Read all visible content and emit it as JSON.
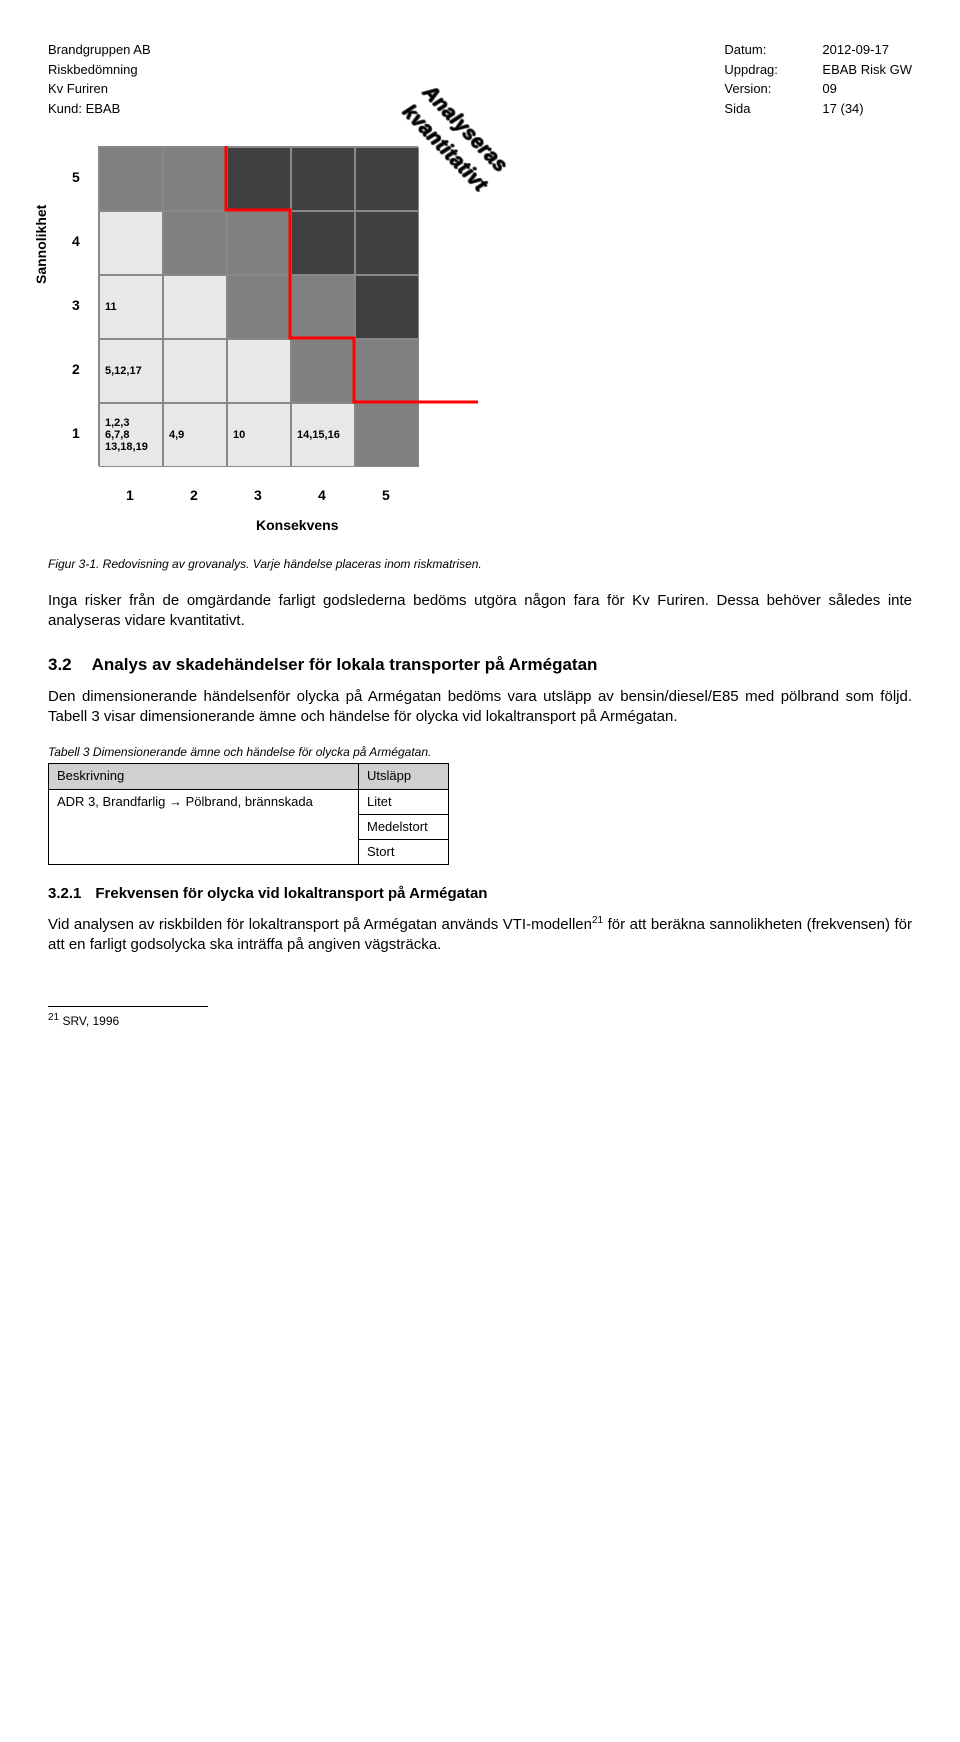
{
  "header": {
    "left": [
      "Brandgruppen AB",
      "Riskbedömning",
      "Kv Furiren",
      "Kund: EBAB"
    ],
    "right": [
      {
        "label": "Datum:",
        "value": "2012-09-17"
      },
      {
        "label": "Uppdrag:",
        "value": "EBAB Risk GW"
      },
      {
        "label": "Version:",
        "value": "09"
      },
      {
        "label": "Sida",
        "value": "17 (34)"
      }
    ]
  },
  "matrix": {
    "ylabel": "Sannolikhet",
    "xlabel": "Konsekvens",
    "diag": "Analyseras kvantitativt",
    "yticks": [
      "5",
      "4",
      "3",
      "2",
      "1"
    ],
    "xticks": [
      "1",
      "2",
      "3",
      "4",
      "5"
    ],
    "colors": {
      "light": "#e8e8e8",
      "med": "#808080",
      "dark": "#404040"
    },
    "red": "#ff0000",
    "cells": [
      {
        "r": 0,
        "c": 0,
        "shade": "med",
        "t": ""
      },
      {
        "r": 0,
        "c": 1,
        "shade": "med",
        "t": ""
      },
      {
        "r": 0,
        "c": 2,
        "shade": "dark",
        "t": ""
      },
      {
        "r": 0,
        "c": 3,
        "shade": "dark",
        "t": ""
      },
      {
        "r": 0,
        "c": 4,
        "shade": "dark",
        "t": ""
      },
      {
        "r": 1,
        "c": 0,
        "shade": "light",
        "t": ""
      },
      {
        "r": 1,
        "c": 1,
        "shade": "med",
        "t": ""
      },
      {
        "r": 1,
        "c": 2,
        "shade": "med",
        "t": ""
      },
      {
        "r": 1,
        "c": 3,
        "shade": "dark",
        "t": ""
      },
      {
        "r": 1,
        "c": 4,
        "shade": "dark",
        "t": ""
      },
      {
        "r": 2,
        "c": 0,
        "shade": "light",
        "t": "11"
      },
      {
        "r": 2,
        "c": 1,
        "shade": "light",
        "t": ""
      },
      {
        "r": 2,
        "c": 2,
        "shade": "med",
        "t": ""
      },
      {
        "r": 2,
        "c": 3,
        "shade": "med",
        "t": ""
      },
      {
        "r": 2,
        "c": 4,
        "shade": "dark",
        "t": ""
      },
      {
        "r": 3,
        "c": 0,
        "shade": "light",
        "t": "5,12,17"
      },
      {
        "r": 3,
        "c": 1,
        "shade": "light",
        "t": ""
      },
      {
        "r": 3,
        "c": 2,
        "shade": "light",
        "t": ""
      },
      {
        "r": 3,
        "c": 3,
        "shade": "med",
        "t": ""
      },
      {
        "r": 3,
        "c": 4,
        "shade": "med",
        "t": ""
      },
      {
        "r": 4,
        "c": 0,
        "shade": "light",
        "t": "1,2,3\n6,7,8\n13,18,19"
      },
      {
        "r": 4,
        "c": 1,
        "shade": "light",
        "t": "4,9"
      },
      {
        "r": 4,
        "c": 2,
        "shade": "light",
        "t": "10"
      },
      {
        "r": 4,
        "c": 3,
        "shade": "light",
        "t": "14,15,16"
      },
      {
        "r": 4,
        "c": 4,
        "shade": "med",
        "t": ""
      }
    ]
  },
  "fig_caption": "Figur 3-1. Redovisning av grovanalys. Varje händelse placeras inom riskmatrisen.",
  "para1": "Inga risker från de omgärdande farligt godslederna bedöms utgöra någon fara för Kv Furiren. Dessa behöver således inte analyseras vidare kvantitativt.",
  "sec": {
    "num": "3.2",
    "title": "Analys av skadehändelser för lokala transporter på Armégatan"
  },
  "para2_a": "Den dimensionerande händelsenför olycka på Armégatan bedöms vara utsläpp av bensin/diesel/E85 med pölbrand som följd. ",
  "para2_b": "Tabell 3 visar dimensionerande ämne och händelse för olycka vid lokaltransport på Armégatan.",
  "tbl_caption": "Tabell 3 Dimensionerande ämne och händelse för olycka på Armégatan.",
  "table": {
    "headers": [
      "Beskrivning",
      "Utsläpp"
    ],
    "col1": "ADR 3, Brandfarlig → Pölbrand, brännskada",
    "col2": [
      "Litet",
      "Medelstort",
      "Stort"
    ]
  },
  "subsec": {
    "num": "3.2.1",
    "title": "Frekvensen för olycka vid lokaltransport på Armégatan"
  },
  "para3_a": "Vid analysen av riskbilden för lokaltransport på Armégatan används VTI-modellen",
  "para3_sup": "21",
  "para3_b": " för att beräkna sannolikheten (frekvensen) för att en farligt godsolycka ska inträffa på angiven vägsträcka.",
  "footnote": {
    "num": "21",
    "text": " SRV, 1996"
  }
}
